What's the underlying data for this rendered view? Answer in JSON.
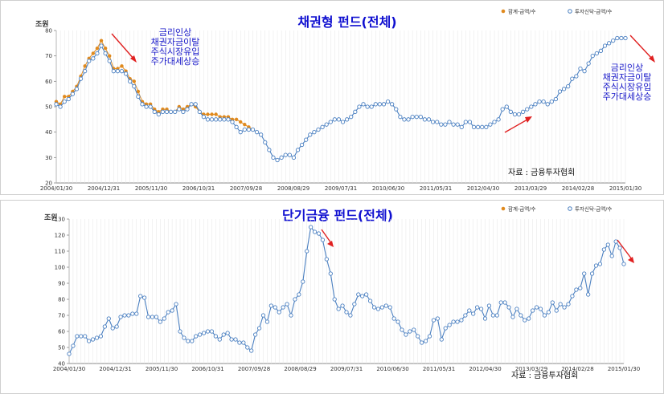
{
  "charts": [
    {
      "id": "top",
      "chart_data": {
        "type": "line",
        "title": "채권형 펀드(전체)",
        "unit": "조원",
        "ylim": [
          20,
          80
        ],
        "yticks": [
          20,
          30,
          40,
          50,
          60,
          70,
          80
        ],
        "xtick_labels": [
          "2004/01/30",
          "2004/12/31",
          "2005/11/30",
          "2006/10/31",
          "2007/09/28",
          "2008/08/29",
          "2009/07/31",
          "2010/06/30",
          "2011/05/31",
          "2012/04/30",
          "2013/03/29",
          "2014/02/28",
          "2015/01/30"
        ],
        "legend": [
          "합계-금액/수",
          "투자신탁-금액/수"
        ],
        "series": [
          {
            "name": "합계-금액/수",
            "color": "#e08a1e",
            "values": [
              52,
              51,
              54,
              54,
              56,
              58,
              62,
              66,
              69,
              71,
              73,
              76,
              73,
              70,
              65,
              65,
              66,
              64,
              61,
              60,
              56,
              52,
              51,
              51,
              49,
              48,
              49,
              49,
              48,
              48,
              50,
              49,
              50,
              51,
              50,
              48,
              47,
              47,
              47,
              47,
              46,
              46,
              46,
              45,
              45,
              44,
              43,
              42,
              41,
              40
            ]
          },
          {
            "name": "투자신탁-금액/수",
            "color": "#4a7fc0",
            "values": [
              51,
              50,
              52,
              53,
              55,
              57,
              61,
              64,
              68,
              69,
              71,
              74,
              71,
              68,
              64,
              64,
              64,
              63,
              60,
              58,
              54,
              51,
              50,
              50,
              48,
              47,
              48,
              48,
              48,
              48,
              49,
              48,
              49,
              51,
              51,
              48,
              46,
              45,
              45,
              45,
              45,
              45,
              45,
              44,
              42,
              40,
              41,
              41,
              41,
              40,
              39,
              36,
              33,
              30,
              29,
              30,
              31,
              31,
              30,
              33,
              35,
              37,
              39,
              40,
              41,
              42,
              43,
              44,
              45,
              45,
              44,
              45,
              46,
              48,
              50,
              51,
              50,
              50,
              51,
              51,
              51,
              52,
              51,
              49,
              46,
              45,
              45,
              46,
              46,
              46,
              45,
              45,
              44,
              44,
              43,
              43,
              44,
              43,
              43,
              42,
              44,
              44,
              42,
              42,
              42,
              42,
              43,
              44,
              45,
              49,
              50,
              48,
              47,
              47,
              48,
              49,
              50,
              51,
              52,
              52,
              51,
              52,
              53,
              56,
              57,
              58,
              61,
              62,
              65,
              64,
              67,
              70,
              71,
              72,
              74,
              75,
              76,
              77,
              77,
              77
            ]
          }
        ],
        "annotations": [
          {
            "lines": [
              "금리인상",
              "채권자금이탈",
              "주식시장유입",
              "주가대세상승"
            ]
          },
          {
            "lines": [
              "금리인상",
              "채권자금이탈",
              "주식시장유입",
              "주가대세상승"
            ]
          }
        ],
        "source": "자료 : 금융투자협회"
      }
    },
    {
      "id": "bottom",
      "chart_data": {
        "type": "line",
        "title": "단기금융 펀드(전체)",
        "unit": "조원",
        "ylim": [
          40,
          130
        ],
        "yticks": [
          40,
          50,
          60,
          70,
          80,
          90,
          100,
          110,
          120,
          130
        ],
        "xtick_labels": [
          "2004/01/30",
          "2004/12/31",
          "2005/11/30",
          "2006/10/31",
          "2007/09/28",
          "2008/08/29",
          "2009/07/31",
          "2010/06/30",
          "2011/05/31",
          "2012/04/30",
          "2013/03/29",
          "2014/02/28",
          "2015/01/30"
        ],
        "legend": [
          "합계-금액/수",
          "투자신탁-금액/수"
        ],
        "series": [
          {
            "name": "투자신탁-금액/수",
            "color": "#4a7fc0",
            "values": [
              46,
              51,
              57,
              57,
              57,
              54,
              55,
              56,
              57,
              63,
              68,
              62,
              63,
              69,
              70,
              70,
              71,
              71,
              82,
              81,
              69,
              69,
              69,
              66,
              68,
              72,
              73,
              77,
              60,
              56,
              54,
              54,
              57,
              58,
              59,
              60,
              60,
              57,
              55,
              58,
              59,
              55,
              55,
              53,
              53,
              50,
              48,
              58,
              62,
              70,
              66,
              76,
              75,
              72,
              75,
              77,
              70,
              80,
              83,
              91,
              110,
              125,
              122,
              121,
              117,
              105,
              96,
              80,
              74,
              76,
              72,
              70,
              77,
              83,
              82,
              83,
              79,
              75,
              74,
              75,
              76,
              75,
              68,
              66,
              61,
              58,
              60,
              61,
              57,
              53,
              54,
              57,
              67,
              68,
              55,
              62,
              64,
              66,
              66,
              67,
              70,
              73,
              71,
              75,
              74,
              68,
              76,
              70,
              70,
              78,
              78,
              75,
              69,
              74,
              70,
              67,
              68,
              73,
              75,
              74,
              70,
              72,
              78,
              73,
              77,
              75,
              77,
              82,
              86,
              87,
              96,
              83,
              96,
              101,
              102,
              111,
              114,
              107,
              116,
              112,
              102
            ]
          }
        ],
        "source": "자료 : 금융투자협회"
      }
    }
  ]
}
